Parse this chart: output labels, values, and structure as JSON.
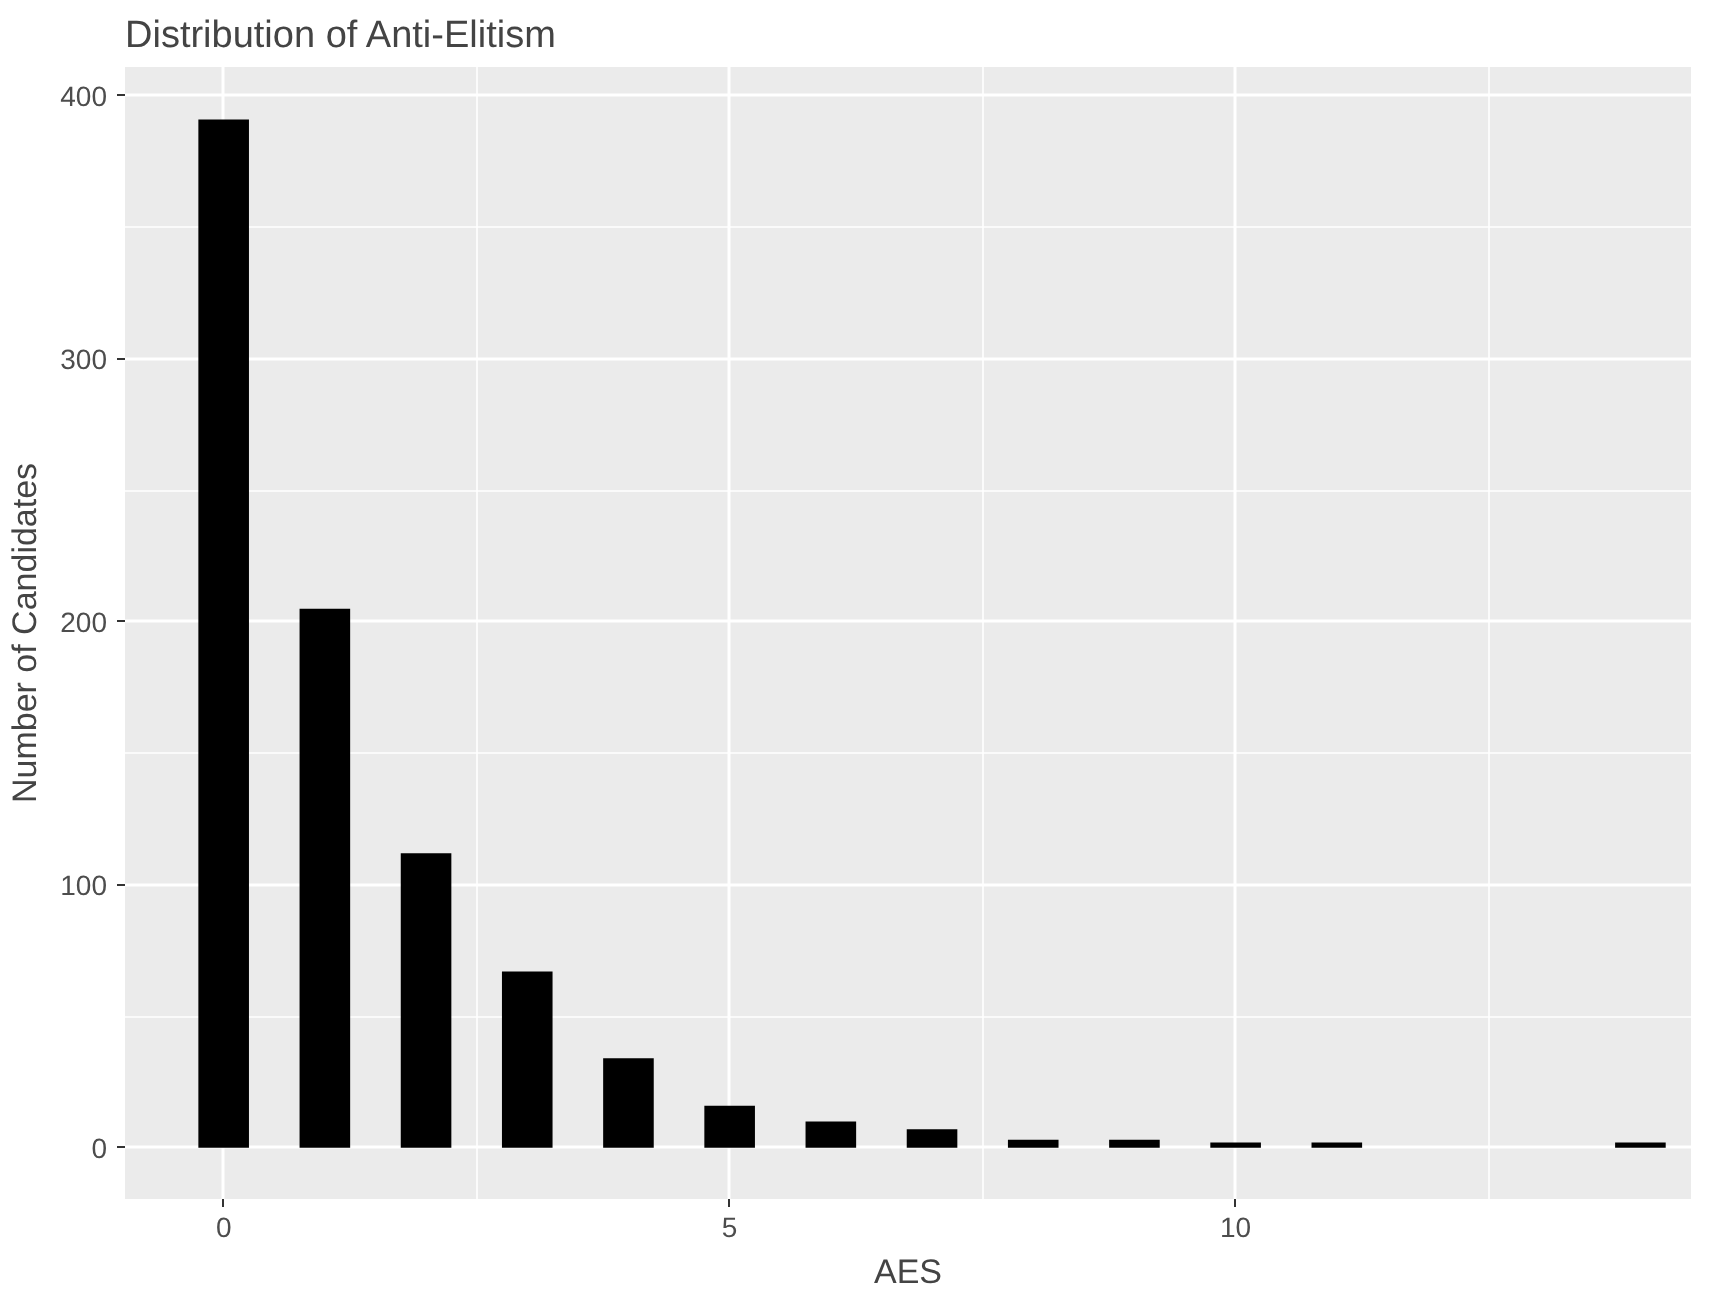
{
  "chart_data": {
    "type": "bar",
    "title": "Distribution of Anti-Elitism",
    "xlabel": "AES",
    "ylabel": "Number of Candidates",
    "x": [
      0,
      1,
      2,
      3,
      4,
      5,
      6,
      7,
      8,
      9,
      10,
      11,
      12,
      13,
      14
    ],
    "values": [
      391,
      205,
      112,
      67,
      34,
      16,
      10,
      7,
      3,
      3,
      2,
      2,
      0,
      0,
      2
    ],
    "color": "#000000",
    "xlim": [
      -0.975,
      14.5
    ],
    "xticks": [
      0,
      5,
      10
    ],
    "ylim": [
      -19.5,
      411
    ],
    "yticks": [
      0,
      100,
      200,
      300,
      400
    ],
    "grid": true
  }
}
